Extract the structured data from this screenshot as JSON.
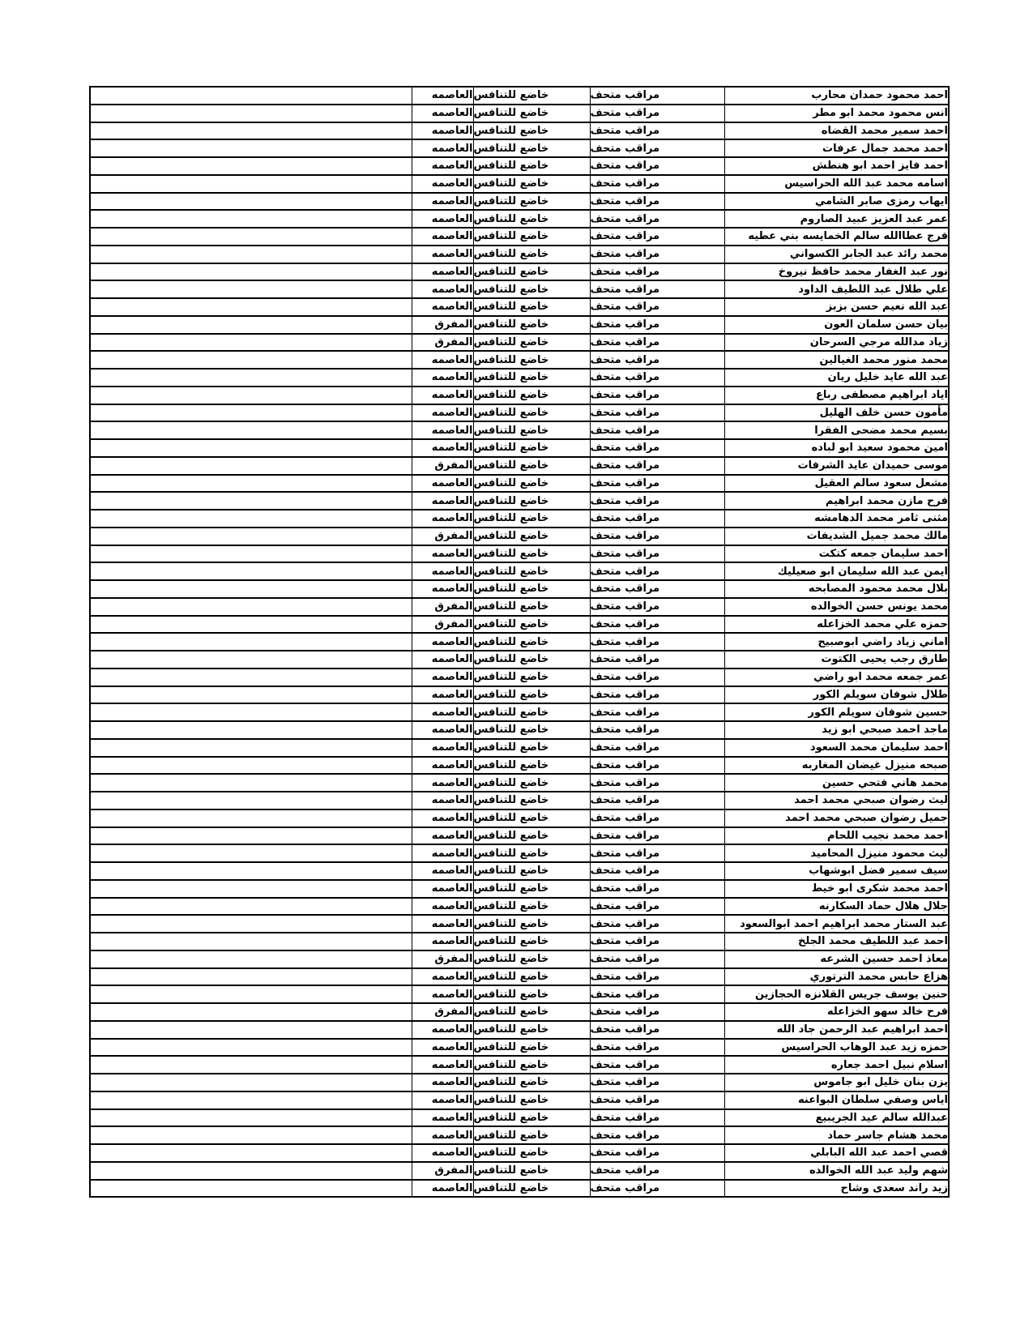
{
  "page": {
    "background_color": "#ffffff",
    "text_color": "#000000",
    "border_color": "#000000"
  },
  "table": {
    "job_label": "مراقب متحف",
    "status_label": "خاضع للتنافس",
    "region_options": [
      "العاصمه",
      "المفرق"
    ],
    "rows": [
      {
        "name": "احمد محمود حمدان محارب",
        "job": "مراقب متحف",
        "status": "خاضع للتنافس",
        "region": "العاصمه"
      },
      {
        "name": "انس محمود محمد ابو مطر",
        "job": "مراقب متحف",
        "status": "خاضع للتنافس",
        "region": "العاصمه"
      },
      {
        "name": "احمد سمير محمد القضاه",
        "job": "مراقب متحف",
        "status": "خاضع للتنافس",
        "region": "العاصمه"
      },
      {
        "name": "احمد محمد جمال عرفات",
        "job": "مراقب متحف",
        "status": "خاضع للتنافس",
        "region": "العاصمه"
      },
      {
        "name": "احمد فايز احمد ابو هنطش",
        "job": "مراقب متحف",
        "status": "خاضع للتنافس",
        "region": "العاصمه"
      },
      {
        "name": "اسامه محمد عبد الله الحراسيس",
        "job": "مراقب متحف",
        "status": "خاضع للتنافس",
        "region": "العاصمه"
      },
      {
        "name": "ايهاب رمزى صابر الشامي",
        "job": "مراقب متحف",
        "status": "خاضع للتنافس",
        "region": "العاصمه"
      },
      {
        "name": "عمر عبد العزيز عبيد الصاروم",
        "job": "مراقب متحف",
        "status": "خاضع للتنافس",
        "region": "العاصمه"
      },
      {
        "name": "فرج عطاالله سالم الخمايسه بني عطيه",
        "job": "مراقب متحف",
        "status": "خاضع للتنافس",
        "region": "العاصمه"
      },
      {
        "name": "محمد رائد عبد الجابر الكسواني",
        "job": "مراقب متحف",
        "status": "خاضع للتنافس",
        "region": "العاصمه"
      },
      {
        "name": "نور عبد الغفار محمد حافظ نيروخ",
        "job": "مراقب متحف",
        "status": "خاضع للتنافس",
        "region": "العاصمه"
      },
      {
        "name": "علي طلال عبد اللطيف الداود",
        "job": "مراقب متحف",
        "status": "خاضع للتنافس",
        "region": "العاصمه"
      },
      {
        "name": "عبد الله نعيم حسن بزبز",
        "job": "مراقب متحف",
        "status": "خاضع للتنافس",
        "region": "العاصمه"
      },
      {
        "name": "بيان حسن سلمان العون",
        "job": "مراقب متحف",
        "status": "خاضع للتنافس",
        "region": "المفرق"
      },
      {
        "name": "زياد مدالله مرجي السرحان",
        "job": "مراقب متحف",
        "status": "خاضع للتنافس",
        "region": "المفرق"
      },
      {
        "name": "محمد منور محمد الغيالين",
        "job": "مراقب متحف",
        "status": "خاضع للتنافس",
        "region": "العاصمه"
      },
      {
        "name": "عبد الله عايد خليل ريان",
        "job": "مراقب متحف",
        "status": "خاضع للتنافس",
        "region": "العاصمه"
      },
      {
        "name": "اياد ابراهيم مصطفى رباع",
        "job": "مراقب متحف",
        "status": "خاضع للتنافس",
        "region": "العاصمه"
      },
      {
        "name": "مأمون حسن خلف الهليل",
        "job": "مراقب متحف",
        "status": "خاضع للتنافس",
        "region": "العاصمه"
      },
      {
        "name": "بسيم محمد مضحى الفقرا",
        "job": "مراقب متحف",
        "status": "خاضع للتنافس",
        "region": "العاصمه"
      },
      {
        "name": "امين محمود سعيد ابو لباده",
        "job": "مراقب متحف",
        "status": "خاضع للتنافس",
        "region": "العاصمه"
      },
      {
        "name": "موسى حميدان عايد الشرفات",
        "job": "مراقب متحف",
        "status": "خاضع للتنافس",
        "region": "المفرق"
      },
      {
        "name": "مشعل سعود سالم العقيل",
        "job": "مراقب متحف",
        "status": "خاضع للتنافس",
        "region": "العاصمه"
      },
      {
        "name": "فرح مازن محمد ابراهيم",
        "job": "مراقب متحف",
        "status": "خاضع للتنافس",
        "region": "العاصمه"
      },
      {
        "name": "مثنى ثامر محمد الدهامشه",
        "job": "مراقب متحف",
        "status": "خاضع للتنافس",
        "region": "العاصمه"
      },
      {
        "name": "مالك محمد جميل الشديفات",
        "job": "مراقب متحف",
        "status": "خاضع للتنافس",
        "region": "المفرق"
      },
      {
        "name": "احمد سليمان جمعه كتكت",
        "job": "مراقب متحف",
        "status": "خاضع للتنافس",
        "region": "العاصمه"
      },
      {
        "name": "ايمن عبد الله سليمان ابو صعيليك",
        "job": "مراقب متحف",
        "status": "خاضع للتنافس",
        "region": "العاصمه"
      },
      {
        "name": "بلال محمد محمود المصابحه",
        "job": "مراقب متحف",
        "status": "خاضع للتنافس",
        "region": "العاصمه"
      },
      {
        "name": "محمد يونس حسن الخوالده",
        "job": "مراقب متحف",
        "status": "خاضع للتنافس",
        "region": "المفرق"
      },
      {
        "name": "حمزه علي محمد الخزاعله",
        "job": "مراقب متحف",
        "status": "خاضع للتنافس",
        "region": "المفرق"
      },
      {
        "name": "اماني زياد راضي ابوصبيح",
        "job": "مراقب متحف",
        "status": "خاضع للتنافس",
        "region": "العاصمه"
      },
      {
        "name": "طارق رجب يحيى الكتوت",
        "job": "مراقب متحف",
        "status": "خاضع للتنافس",
        "region": "العاصمه"
      },
      {
        "name": "عمر جمعه محمد ابو راضي",
        "job": "مراقب متحف",
        "status": "خاضع للتنافس",
        "region": "العاصمه"
      },
      {
        "name": "طلال شوفان سويلم الكور",
        "job": "مراقب متحف",
        "status": "خاضع للتنافس",
        "region": "العاصمه"
      },
      {
        "name": "حسين شوفان سويلم الكور",
        "job": "مراقب متحف",
        "status": "خاضع للتنافس",
        "region": "العاصمه"
      },
      {
        "name": "ماجد احمد صبحي ابو زيد",
        "job": "مراقب متحف",
        "status": "خاضع للتنافس",
        "region": "العاصمه"
      },
      {
        "name": "احمد سليمان محمد السعود",
        "job": "مراقب متحف",
        "status": "خاضع للتنافس",
        "region": "العاصمه"
      },
      {
        "name": "صبحه منيزل غيضان المغاربه",
        "job": "مراقب متحف",
        "status": "خاضع للتنافس",
        "region": "العاصمه"
      },
      {
        "name": "محمد هاني فتحي حسين",
        "job": "مراقب متحف",
        "status": "خاضع للتنافس",
        "region": "العاصمه"
      },
      {
        "name": "ليث رضوان صبحي محمد احمد",
        "job": "مراقب متحف",
        "status": "خاضع للتنافس",
        "region": "العاصمه"
      },
      {
        "name": "جميل رضوان صبحي محمد احمد",
        "job": "مراقب متحف",
        "status": "خاضع للتنافس",
        "region": "العاصمه"
      },
      {
        "name": "احمد محمد نجيب اللحام",
        "job": "مراقب متحف",
        "status": "خاضع للتنافس",
        "region": "العاصمه"
      },
      {
        "name": "ليث محمود منيزل المحاميد",
        "job": "مراقب متحف",
        "status": "خاضع للتنافس",
        "region": "العاصمه"
      },
      {
        "name": "سيف سمير فضل ابوشهاب",
        "job": "مراقب متحف",
        "status": "خاضع للتنافس",
        "region": "العاصمه"
      },
      {
        "name": "احمد محمد شكرى ابو خيط",
        "job": "مراقب متحف",
        "status": "خاضع للتنافس",
        "region": "العاصمه"
      },
      {
        "name": "جلال هلال حماد السكارنه",
        "job": "مراقب متحف",
        "status": "خاضع للتنافس",
        "region": "العاصمه"
      },
      {
        "name": "عبد الستار محمد ابراهيم احمد ابوالسعود",
        "job": "مراقب متحف",
        "status": "خاضع للتنافس",
        "region": "العاصمه"
      },
      {
        "name": "احمد عبد اللطيف محمد الجلخ",
        "job": "مراقب متحف",
        "status": "خاضع للتنافس",
        "region": "العاصمه"
      },
      {
        "name": "معاذ احمد حسين الشرعه",
        "job": "مراقب متحف",
        "status": "خاضع للتنافس",
        "region": "المفرق"
      },
      {
        "name": "هزاع حابس محمد الترتوري",
        "job": "مراقب متحف",
        "status": "خاضع للتنافس",
        "region": "العاصمه"
      },
      {
        "name": "حنين يوسف جريس القلانزه الحجازين",
        "job": "مراقب متحف",
        "status": "خاضع للتنافس",
        "region": "العاصمه"
      },
      {
        "name": "فرح خالد سهو الخزاعله",
        "job": "مراقب متحف",
        "status": "خاضع للتنافس",
        "region": "المفرق"
      },
      {
        "name": "احمد ابراهيم عبد الرحمن جاد الله",
        "job": "مراقب متحف",
        "status": "خاضع للتنافس",
        "region": "العاصمه"
      },
      {
        "name": "حمزه زيد عبد الوهاب الحراسيس",
        "job": "مراقب متحف",
        "status": "خاضع للتنافس",
        "region": "العاصمه"
      },
      {
        "name": "اسلام نبيل احمد جعاره",
        "job": "مراقب متحف",
        "status": "خاضع للتنافس",
        "region": "العاصمه"
      },
      {
        "name": "يزن بنان خليل ابو جاموس",
        "job": "مراقب متحف",
        "status": "خاضع للتنافس",
        "region": "العاصمه"
      },
      {
        "name": "اياس وصفي سلطان البواعنه",
        "job": "مراقب متحف",
        "status": "خاضع للتنافس",
        "region": "العاصمه"
      },
      {
        "name": "عبدالله سالم عيد الجريبيع",
        "job": "مراقب متحف",
        "status": "خاضع للتنافس",
        "region": "العاصمه"
      },
      {
        "name": "محمد هشام جاسر حماد",
        "job": "مراقب متحف",
        "status": "خاضع للتنافس",
        "region": "العاصمه"
      },
      {
        "name": "قصي احمد عبد الله البابلي",
        "job": "مراقب متحف",
        "status": "خاضع للتنافس",
        "region": "العاصمه"
      },
      {
        "name": "شهم وليد عبد الله الخوالده",
        "job": "مراقب متحف",
        "status": "خاضع للتنافس",
        "region": "المفرق"
      },
      {
        "name": "زيد راند سعدى وشاح",
        "job": "مراقب متحف",
        "status": "خاضع للتنافس",
        "region": "العاصمه"
      }
    ]
  }
}
